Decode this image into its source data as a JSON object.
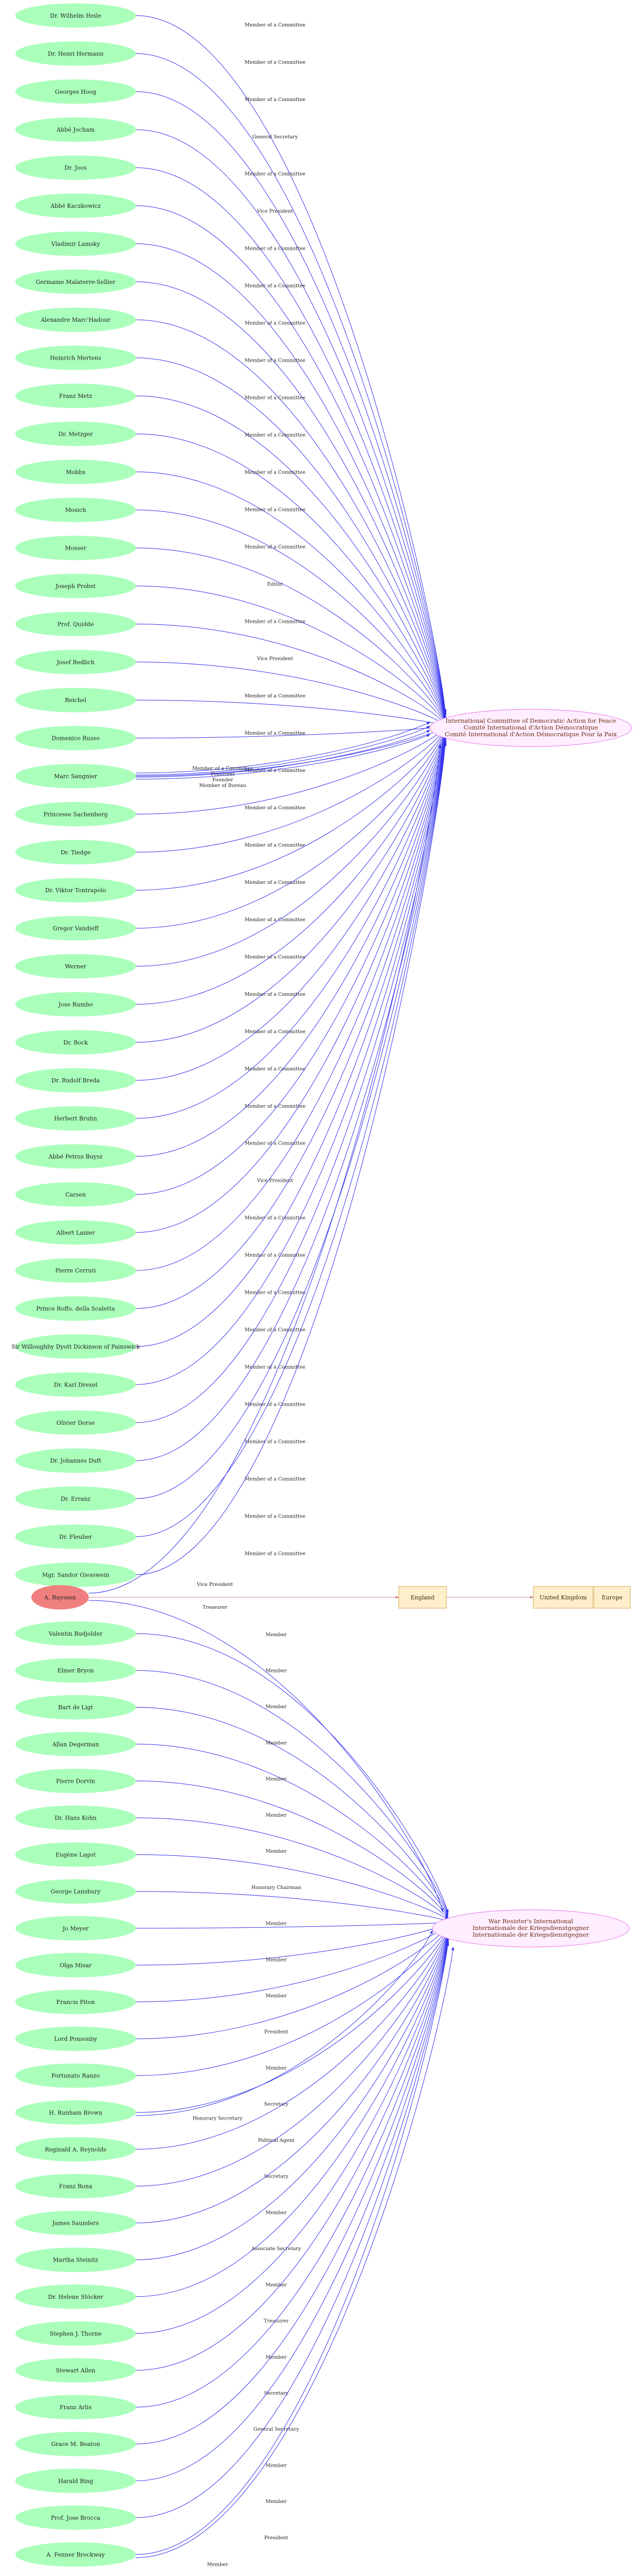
{
  "colors": {
    "person_fill": "#aaffbb",
    "highlight_fill": "#f08080",
    "org_fill": "#ffeeff",
    "org_stroke": "#ee88ee",
    "place_fill": "#ffeecc",
    "place_stroke": "#d4a84c",
    "member_edge": "#3333ee",
    "place_edge": "#cc8888"
  },
  "organizations": {
    "icdap": [
      "International Committee of Democratic Action for Peace",
      "Comité International d'Action Démocratique",
      "Comité International d'Action Démocratique Pour la Paix"
    ],
    "wri": [
      "War Resister's International",
      "Internationale der Kriegsdienstgegner",
      "Internationale der Kriegsdienstgegner"
    ]
  },
  "group_a": [
    {
      "name": "Dr. Wilhelm Heile",
      "role": "Member of a Committee"
    },
    {
      "name": "Dr. Henri Hermann",
      "role": "Member of a Committee"
    },
    {
      "name": "Georges Hoog",
      "role": "Member of a Committee"
    },
    {
      "name": "Abbé Jocham",
      "role": "General Secretary"
    },
    {
      "name": "Dr. Joos",
      "role": "Member of a Committee"
    },
    {
      "name": "Abbé Kaczkowicz",
      "role": "Vice President"
    },
    {
      "name": "Vladimir Lamsky",
      "role": "Member of a Committee"
    },
    {
      "name": "Germaine Malaterre-Sellier",
      "role": "Member of a Committee"
    },
    {
      "name": "Alexandre Marc'Hadour",
      "role": "Member of a Committee"
    },
    {
      "name": "Heinrich Mertens",
      "role": "Member of a Committee"
    },
    {
      "name": "Franz Metz",
      "role": "Member of a Committee"
    },
    {
      "name": "Dr. Metzger",
      "role": "Member of a Committee"
    },
    {
      "name": "Mobbs",
      "role": "Member of a Committee"
    },
    {
      "name": "Mosich",
      "role": "Member of a Committee"
    },
    {
      "name": "Mosser",
      "role": "Member of a Committee"
    },
    {
      "name": "Joseph Probst",
      "role": "Editor"
    },
    {
      "name": "Prof. Quidde",
      "role": "Member of a Committee"
    },
    {
      "name": "Josef Redlich",
      "role": "Vice President"
    },
    {
      "name": "Reichel",
      "role": "Member of a Committee"
    },
    {
      "name": "Domenico Russo",
      "role": "Member of a Committee"
    },
    {
      "name": "Marc Sangnier",
      "role": "Member of a Committee"
    },
    {
      "name": "Princesse Sachenberg",
      "role": "Member of a Committee"
    },
    {
      "name": "Dr. Tiedge",
      "role": "Member of a Committee"
    },
    {
      "name": "Dr. Viktor Tontrapolo",
      "role": "Member of a Committee"
    },
    {
      "name": "Gregor Vandieff",
      "role": "Member of a Committee"
    },
    {
      "name": "Werner",
      "role": "Member of a Committee"
    },
    {
      "name": "Jose Rumbo",
      "role": "Member of a Committee"
    },
    {
      "name": "Dr. Bock",
      "role": "Member of a Committee"
    },
    {
      "name": "Dr. Rudolf Breda",
      "role": "Member of a Committee"
    },
    {
      "name": "Herbert Bruhn",
      "role": "Member of a Committee"
    },
    {
      "name": "Abbé Petrus Buysz",
      "role": "Member of a Committee"
    },
    {
      "name": "Carsen",
      "role": "Vice President"
    },
    {
      "name": "Albert Lanier",
      "role": "Member of a Committee"
    },
    {
      "name": "Pierre Cerruti",
      "role": "Member of a Committee"
    },
    {
      "name": "Prince Roffo. della Scaletta",
      "role": "Member of a Committee"
    },
    {
      "name": "Sir Willoughby Dyott Dickinson of Painswick",
      "role": "Member of a Committee"
    },
    {
      "name": "Dr. Karl Drexel",
      "role": "Member of a Committee"
    },
    {
      "name": "Olivier Dorse",
      "role": "Member of a Committee"
    },
    {
      "name": "Dr. Johannes Duft",
      "role": "Member of a Committee"
    },
    {
      "name": "Dr. Erranz",
      "role": "Member of a Committee"
    },
    {
      "name": "Dr. Fleuber",
      "role": "Member of a Committee"
    },
    {
      "name": "Mgr. Sandor Giesswein",
      "role": "Member of a Committee"
    }
  ],
  "sangnier_extra_roles": [
    "Member of a Committee",
    "President",
    "Founder",
    "Member of Bureau"
  ],
  "highlight_person": {
    "name": "A. Ruyssen",
    "role_a": "Vice President",
    "role_b": "Treasurer"
  },
  "places": [
    "England",
    "United Kingdom",
    "Europe"
  ],
  "group_b": [
    {
      "name": "Valentin Budjolder",
      "role": "Member"
    },
    {
      "name": "Elmer Bryon",
      "role": "Member"
    },
    {
      "name": "Bart de Ligt",
      "role": "Member"
    },
    {
      "name": "Allan Degerman",
      "role": "Member"
    },
    {
      "name": "Pierre Dorvin",
      "role": "Member"
    },
    {
      "name": "Dr. Hans Kohn",
      "role": "Member"
    },
    {
      "name": "Eugène Lagot",
      "role": "Member"
    },
    {
      "name": "George Lansbury",
      "role": "Honorary Chairman"
    },
    {
      "name": "Jo Meyer",
      "role": "Member"
    },
    {
      "name": "Olga Misar",
      "role": "Member"
    },
    {
      "name": "Francis Piton",
      "role": "Member"
    },
    {
      "name": "Lord Ponsonby",
      "role": "President"
    },
    {
      "name": "Fortunato Ranzo",
      "role": "Member"
    },
    {
      "name": "H. Runham Brown",
      "role": "Secretary"
    },
    {
      "name": "Reginald A. Reynolds",
      "role": "Political Agent"
    },
    {
      "name": "Franz Rona",
      "role": "Secretary"
    },
    {
      "name": "James Saunders",
      "role": "Member"
    },
    {
      "name": "Martha Steinitz",
      "role": "Associate Secretary"
    },
    {
      "name": "Dr. Helene Stöcker",
      "role": "Member"
    },
    {
      "name": "Stephen J. Thorne",
      "role": "Treasurer"
    },
    {
      "name": "Stewart Allen",
      "role": "Member"
    },
    {
      "name": "Franz Arlis",
      "role": "Secretary"
    },
    {
      "name": "Grace M. Beaton",
      "role": "General Secretary"
    },
    {
      "name": "Harald Bing",
      "role": "Member"
    },
    {
      "name": "Prof. Jose Brocca",
      "role": "Member"
    },
    {
      "name": "A. Fenner Brockway",
      "role": "President"
    }
  ],
  "runham_extra_role": "Honorary Secretary",
  "brockway_extra_role": "Member"
}
